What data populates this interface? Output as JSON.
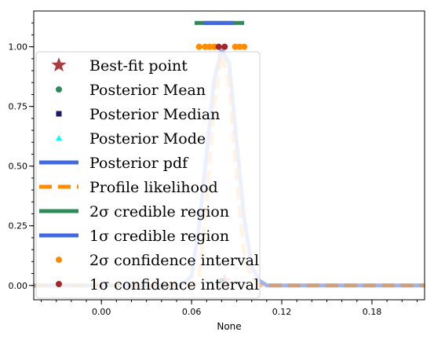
{
  "chart_data": {
    "type": "line",
    "xlabel": "None",
    "ylabel": "",
    "xlim": [
      -0.045,
      0.215
    ],
    "ylim": [
      -0.06,
      1.15
    ],
    "x_ticks": [
      0.0,
      0.06,
      0.12,
      0.18
    ],
    "x_tick_labels": [
      "0.00",
      "0.06",
      "0.12",
      "0.18"
    ],
    "y_ticks": [
      0.0,
      0.25,
      0.5,
      0.75,
      1.0
    ],
    "y_tick_labels": [
      "0.00",
      "0.25",
      "0.50",
      "0.75",
      "1.00"
    ],
    "grid": false,
    "legend_position": "left",
    "colors": {
      "best_fit": "#a0282d",
      "mean": "#2e8b57",
      "median": "#191970",
      "mode": "#00ffff",
      "posterior_pdf": "#4169e1",
      "profile": "#ff8c00",
      "cred_2sigma": "#2e8b57",
      "cred_1sigma": "#4169e1",
      "conf_2sigma": "#ff8c00",
      "conf_1sigma": "#a0282d"
    },
    "series": [
      {
        "name": "Posterior pdf",
        "x": [
          -0.045,
          0.05,
          0.055,
          0.06,
          0.065,
          0.07,
          0.075,
          0.08,
          0.085,
          0.09,
          0.095,
          0.1,
          0.105,
          0.11,
          0.215
        ],
        "y": [
          0.0,
          0.0,
          0.01,
          0.04,
          0.25,
          0.55,
          0.86,
          0.99,
          0.93,
          0.6,
          0.28,
          0.08,
          0.02,
          0.0,
          0.0
        ]
      },
      {
        "name": "Profile likelihood",
        "x": [
          -0.045,
          0.06,
          0.065,
          0.07,
          0.075,
          0.08,
          0.085,
          0.09,
          0.095,
          0.1,
          0.105,
          0.215
        ],
        "y": [
          0.0,
          0.0,
          0.04,
          0.35,
          0.75,
          0.97,
          0.85,
          0.45,
          0.13,
          0.03,
          0.0,
          0.0
        ]
      }
    ],
    "points": {
      "best_fit": {
        "x": 0.082,
        "y": 0.02
      },
      "mean": {
        "x": 0.08,
        "y": 0.02
      },
      "median": {
        "x": 0.08,
        "y": 0.02
      },
      "mode": {
        "x": 0.078,
        "y": 0.02
      }
    },
    "credible_2sigma": {
      "x": [
        0.062,
        0.095
      ],
      "y": 1.1
    },
    "credible_1sigma": {
      "x": [
        0.068,
        0.088
      ],
      "y": 1.1
    },
    "confidence_2sigma": {
      "x": [
        0.065,
        0.069,
        0.072,
        0.075,
        0.089,
        0.092,
        0.095
      ],
      "y": 1.0
    },
    "confidence_1sigma": {
      "x": [
        0.078,
        0.082
      ],
      "y": 1.0
    },
    "legend": [
      "Best-fit point",
      "Posterior Mean",
      "Posterior Median",
      "Posterior Mode",
      "Posterior pdf",
      "Profile likelihood",
      "2σ credible region",
      "1σ credible region",
      "2σ confidence interval",
      "1σ confidence interval"
    ]
  }
}
